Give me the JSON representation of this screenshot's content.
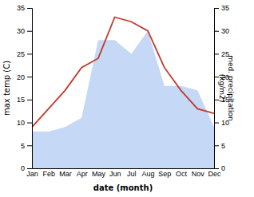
{
  "chart_data": {
    "type": "line",
    "categories": [
      "Jan",
      "Feb",
      "Mar",
      "Apr",
      "May",
      "Jun",
      "Jul",
      "Aug",
      "Sep",
      "Oct",
      "Nov",
      "Dec"
    ],
    "xlabel": "date (month)",
    "ylabel": "max temp (C)",
    "y2label": "med. precipitation\n(kg/m2)",
    "ylim": [
      0,
      35
    ],
    "yticks": [
      0,
      5,
      10,
      15,
      20,
      25,
      30,
      35
    ],
    "y2lim": [
      0,
      35
    ],
    "y2ticks": [
      0,
      5,
      10,
      15,
      20,
      25,
      30,
      35
    ],
    "grid": false,
    "series": [
      {
        "type": "area",
        "axis": "y2",
        "color": "#c5d8f5",
        "values": [
          8,
          8,
          9,
          11,
          28,
          28,
          25,
          30,
          18,
          18,
          17,
          9
        ]
      },
      {
        "type": "line",
        "color": "#c0392b",
        "values": [
          9,
          13,
          17,
          22,
          24,
          33,
          32,
          30,
          22,
          17,
          13,
          12
        ]
      }
    ]
  }
}
